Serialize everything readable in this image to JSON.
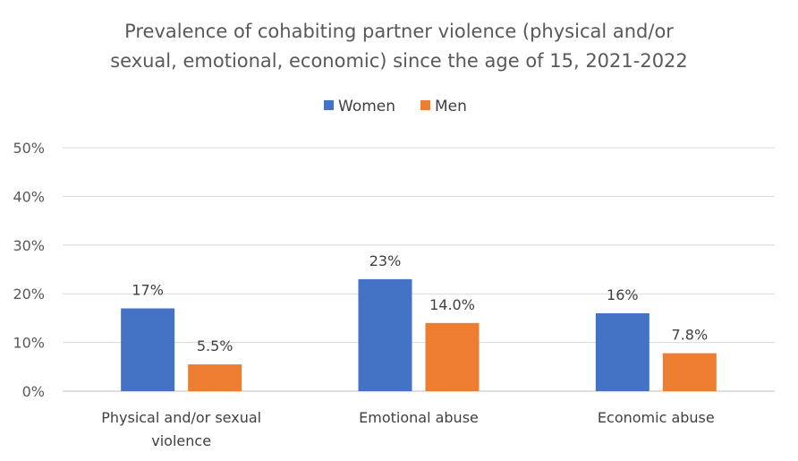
{
  "chart_data": {
    "type": "bar",
    "title_lines": [
      "Prevalence of cohabiting partner violence (physical and/or",
      "sexual, emotional, economic) since the age of 15, 2021-2022"
    ],
    "categories": [
      [
        "Physical and/or sexual",
        "violence"
      ],
      [
        "Emotional abuse"
      ],
      [
        "Economic abuse"
      ]
    ],
    "series": [
      {
        "name": "Women",
        "color": "#4472c4",
        "values": [
          17,
          23,
          16
        ],
        "labels": [
          "17%",
          "23%",
          "16%"
        ]
      },
      {
        "name": "Men",
        "color": "#ed7d31",
        "values": [
          5.5,
          14.0,
          7.8
        ],
        "labels": [
          "5.5%",
          "14.0%",
          "7.8%"
        ]
      }
    ],
    "yticks": [
      "0%",
      "10%",
      "20%",
      "30%",
      "40%",
      "50%"
    ],
    "ylim": [
      0,
      50
    ],
    "grid": true,
    "legend_position": "top"
  }
}
